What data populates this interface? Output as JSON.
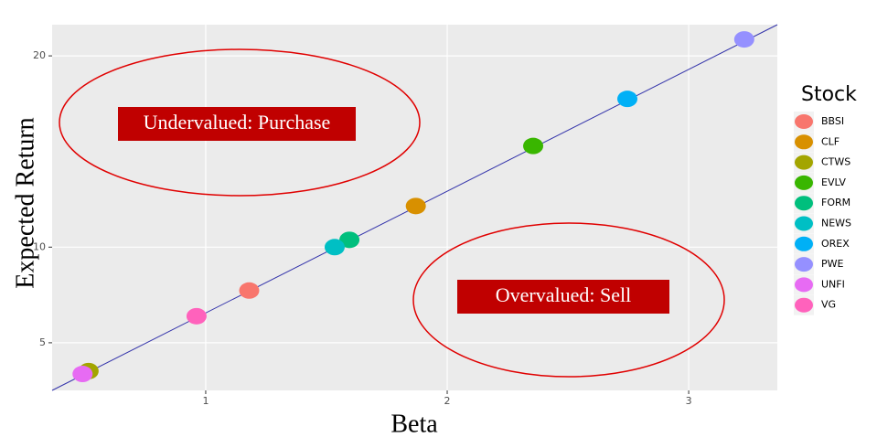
{
  "chart_data": {
    "type": "scatter",
    "x_label": "Beta",
    "y_label": "Expected Return",
    "legend_title": "Stock",
    "legend_position": "right",
    "xlim": [
      0.364,
      3.367
    ],
    "ylim": [
      2.51,
      21.63
    ],
    "xticks": [
      1,
      2,
      3
    ],
    "yticks": [
      5,
      10,
      20
    ],
    "grid": true,
    "series": [
      {
        "name": "BBSI",
        "color": "#F8766D",
        "x": [
          1.18
        ],
        "values": [
          7.73
        ]
      },
      {
        "name": "CLF",
        "color": "#D89000",
        "x": [
          1.87
        ],
        "values": [
          12.15
        ]
      },
      {
        "name": "CTWS",
        "color": "#A3A500",
        "x": [
          0.515
        ],
        "values": [
          3.52
        ]
      },
      {
        "name": "EVLV",
        "color": "#39B600",
        "x": [
          2.356
        ],
        "values": [
          15.29
        ]
      },
      {
        "name": "FORM",
        "color": "#00BF7D",
        "x": [
          1.595
        ],
        "values": [
          10.38
        ]
      },
      {
        "name": "NEWS",
        "color": "#00BFC4",
        "x": [
          1.534
        ],
        "values": [
          10.0
        ]
      },
      {
        "name": "OREX",
        "color": "#00B0F6",
        "x": [
          2.746
        ],
        "values": [
          17.75
        ]
      },
      {
        "name": "PWE",
        "color": "#9590FF",
        "x": [
          3.23
        ],
        "values": [
          20.86
        ]
      },
      {
        "name": "UNFI",
        "color": "#E76BF3",
        "x": [
          0.49
        ],
        "values": [
          3.37
        ]
      },
      {
        "name": "VG",
        "color": "#FF62BC",
        "x": [
          0.962
        ],
        "values": [
          6.39
        ]
      }
    ],
    "fit_line": {
      "color": "#3333aa",
      "x": [
        0.364,
        3.367
      ],
      "values": [
        2.51,
        21.63
      ]
    },
    "annotations": [
      "Undervalued: Purchase",
      "Overvalued: Sell"
    ]
  }
}
